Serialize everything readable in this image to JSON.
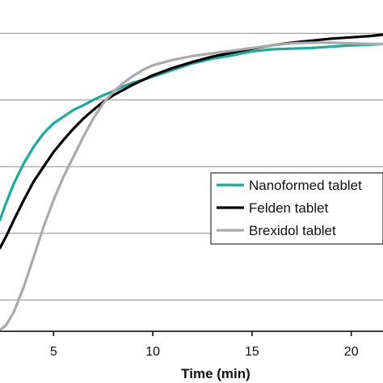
{
  "chart_data": {
    "type": "line",
    "title": "",
    "xlabel": "Time (min)",
    "ylabel": "",
    "xlim": [
      2.3,
      21.6
    ],
    "ylim": [
      0.53,
      5.5
    ],
    "x_ticks": [
      5,
      10,
      15,
      20
    ],
    "x_tick_labels": [
      "5",
      "10",
      "15",
      "20"
    ],
    "y_gridlines": [
      1,
      2,
      3,
      4,
      5
    ],
    "grid": "horizontal",
    "legend": "center-right",
    "series": [
      {
        "name": "Nanoformed tablet",
        "color": "#1aab9b",
        "x": [
          2.3,
          2.6,
          3,
          3.5,
          4,
          4.5,
          5,
          5.5,
          6,
          6.5,
          7,
          7.5,
          8,
          8.5,
          9,
          9.5,
          10,
          11,
          12,
          13,
          14,
          15,
          16,
          17,
          18,
          19,
          20,
          21,
          21.6
        ],
        "values": [
          2.2,
          2.45,
          2.75,
          3.05,
          3.3,
          3.5,
          3.65,
          3.75,
          3.85,
          3.92,
          4.0,
          4.07,
          4.13,
          4.2,
          4.26,
          4.3,
          4.35,
          4.45,
          4.55,
          4.62,
          4.67,
          4.73,
          4.76,
          4.77,
          4.78,
          4.8,
          4.82,
          4.83,
          4.84
        ]
      },
      {
        "name": "Felden tablet",
        "color": "#000000",
        "x": [
          2.3,
          2.6,
          3,
          3.5,
          4,
          4.5,
          5,
          5.5,
          6,
          6.5,
          7,
          7.5,
          8,
          9,
          10,
          11,
          12,
          13,
          14,
          15,
          16,
          17,
          18,
          19,
          20,
          21,
          21.6
        ],
        "values": [
          1.78,
          1.95,
          2.2,
          2.5,
          2.78,
          3.0,
          3.22,
          3.4,
          3.57,
          3.72,
          3.85,
          3.97,
          4.07,
          4.23,
          4.37,
          4.48,
          4.57,
          4.65,
          4.71,
          4.77,
          4.82,
          4.86,
          4.89,
          4.92,
          4.94,
          4.96,
          4.98
        ]
      },
      {
        "name": "Brexidol tablet",
        "color": "#aaaaaa",
        "x": [
          2.3,
          2.6,
          3,
          3.5,
          4,
          4.5,
          5,
          5.5,
          6,
          6.5,
          7,
          7.5,
          8,
          8.5,
          9,
          9.5,
          10,
          11,
          12,
          13,
          14,
          15,
          16,
          17,
          18,
          19,
          20,
          21,
          21.6
        ],
        "values": [
          0.55,
          0.62,
          0.82,
          1.2,
          1.65,
          2.1,
          2.5,
          2.85,
          3.15,
          3.45,
          3.72,
          3.95,
          4.12,
          4.25,
          4.36,
          4.45,
          4.52,
          4.6,
          4.66,
          4.7,
          4.74,
          4.78,
          4.82,
          4.85,
          4.86,
          4.86,
          4.85,
          4.84,
          4.84
        ]
      }
    ]
  }
}
